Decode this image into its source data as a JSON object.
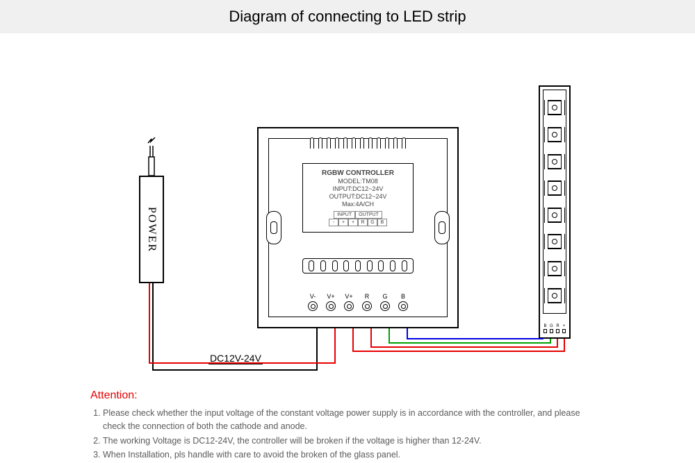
{
  "title": "Diagram of connecting to LED strip",
  "power": {
    "label": "POWER"
  },
  "dc_label": "DC12V-24V",
  "controller": {
    "heading": "RGBW CONTROLLER",
    "model": "MODEL:TM08",
    "input": "INPUT:DC12~24V",
    "output": "OUTPUT:DC12~24V",
    "max": "Max:4A/CH",
    "io_header_in": "INPUT",
    "io_header_out": "OUTPUT",
    "io_in": [
      "-",
      "+"
    ],
    "io_out": [
      "+",
      "R",
      "G",
      "B"
    ],
    "terminals": [
      "V-",
      "V+",
      "V+",
      "R",
      "G",
      "B"
    ]
  },
  "led_strip": {
    "chip_count": 8,
    "pads": [
      "B",
      "G",
      "R",
      "+"
    ]
  },
  "wires": {
    "colors": {
      "vminus": "#000000",
      "vplus_in": "#e60000",
      "vplus_out": "#e60000",
      "r": "#e60000",
      "g": "#00a000",
      "b": "#0000e6"
    }
  },
  "attention": {
    "heading": "Attention:",
    "items": [
      "Please check whether the input voltage of the constant voltage power supply is in accordance with the controller, and please check the connection of both the cathode and anode.",
      "The working Voltage is DC12-24V, the controller will be broken if the voltage is higher than 12-24V.",
      "When Installation, pls handle with care to avoid the broken of the glass panel."
    ]
  }
}
